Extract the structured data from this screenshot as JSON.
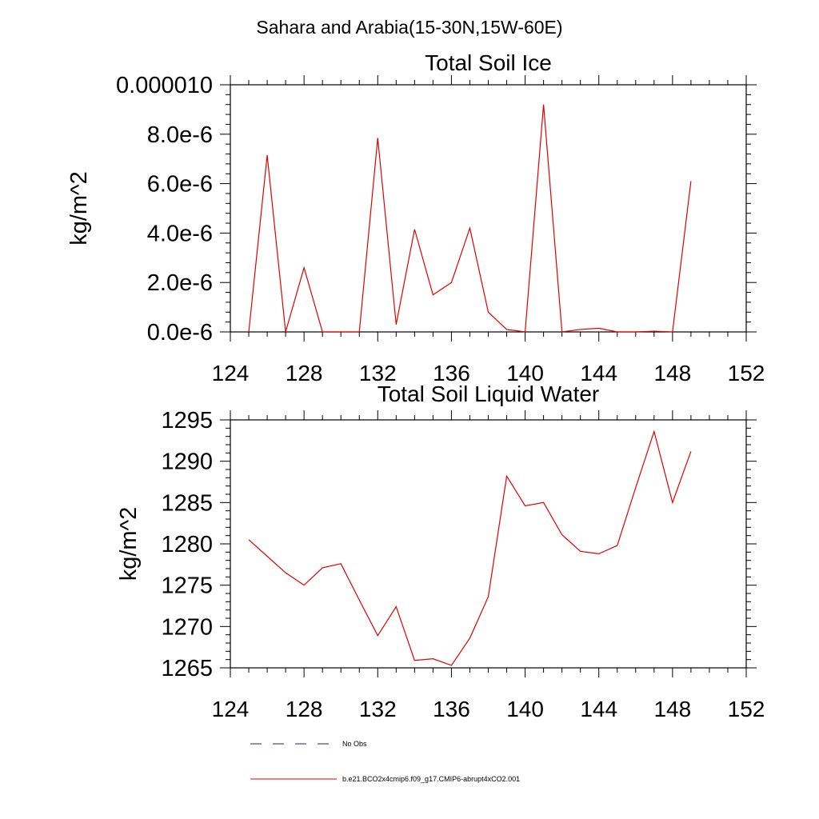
{
  "figure_title": "Sahara and Arabia(15-30N,15W-60E)",
  "legend": {
    "items": [
      {
        "label": "No Obs",
        "color": "#1f1f6e",
        "dash": true
      },
      {
        "label": "b.e21.BCO2x4cmip6.f09_g17.CMIP6-abrupt4xCO2.001",
        "color": "#e00000",
        "dash": false
      }
    ]
  },
  "chart_data": [
    {
      "type": "line",
      "title": "Total Soil Ice",
      "ylabel": "kg/m^2",
      "xlabel": "",
      "xlim": [
        124,
        152
      ],
      "ylim": [
        0,
        1e-05
      ],
      "xticks": [
        124,
        128,
        132,
        136,
        140,
        144,
        148,
        152
      ],
      "xtick_labels": [
        "124",
        "128",
        "132",
        "136",
        "140",
        "144",
        "148",
        "152"
      ],
      "yticks": [
        0,
        2e-06,
        4e-06,
        6e-06,
        8e-06,
        1e-05
      ],
      "ytick_labels": [
        "0.0e-6",
        "2.0e-6",
        "4.0e-6",
        "6.0e-6",
        "8.0e-6",
        "0.000010"
      ],
      "series": [
        {
          "name": "b.e21.BCO2x4cmip6.f09_g17.CMIP6-abrupt4xCO2.001",
          "color": "#e00000",
          "x": [
            125,
            126,
            127,
            128,
            129,
            130,
            131,
            132,
            133,
            134,
            135,
            136,
            137,
            138,
            139,
            140,
            141,
            142,
            143,
            144,
            145,
            146,
            147,
            148,
            149
          ],
          "values": [
            0,
            7.15e-06,
            0,
            2.6e-06,
            0,
            0,
            0,
            7.85e-06,
            3e-07,
            4.15e-06,
            1.5e-06,
            2e-06,
            4.2e-06,
            8e-07,
            1e-07,
            0,
            9.2e-06,
            0,
            1e-07,
            1.5e-07,
            0,
            0,
            3e-08,
            0,
            6.1e-06
          ]
        }
      ]
    },
    {
      "type": "line",
      "title": "Total Soil Liquid Water",
      "ylabel": "kg/m^2",
      "xlabel": "",
      "xlim": [
        124,
        152
      ],
      "ylim": [
        1265,
        1295
      ],
      "xticks": [
        124,
        128,
        132,
        136,
        140,
        144,
        148,
        152
      ],
      "xtick_labels": [
        "124",
        "128",
        "132",
        "136",
        "140",
        "144",
        "148",
        "152"
      ],
      "yticks": [
        1265,
        1270,
        1275,
        1280,
        1285,
        1290,
        1295
      ],
      "ytick_labels": [
        "1265",
        "1270",
        "1275",
        "1280",
        "1285",
        "1290",
        "1295"
      ],
      "series": [
        {
          "name": "b.e21.BCO2x4cmip6.f09_g17.CMIP6-abrupt4xCO2.001",
          "color": "#e00000",
          "x": [
            125,
            126,
            127,
            128,
            129,
            130,
            131,
            132,
            133,
            134,
            135,
            136,
            137,
            138,
            139,
            140,
            141,
            142,
            143,
            144,
            145,
            146,
            147,
            148,
            149
          ],
          "values": [
            1280.5,
            1278.5,
            1276.5,
            1275.0,
            1277.1,
            1277.6,
            1273.2,
            1268.9,
            1272.4,
            1265.9,
            1266.1,
            1265.3,
            1268.6,
            1273.6,
            1288.2,
            1284.6,
            1285.0,
            1281.1,
            1279.1,
            1278.8,
            1279.8,
            1286.8,
            1293.6,
            1285.0,
            1291.2
          ]
        }
      ]
    }
  ]
}
